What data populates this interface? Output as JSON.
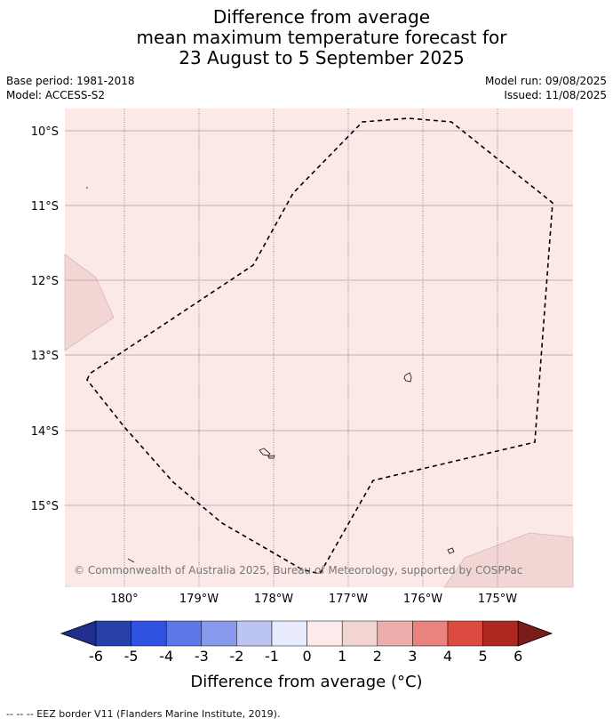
{
  "title": {
    "line1": "Difference from average",
    "line2": "mean maximum temperature forecast for",
    "line3": "23 August to 5 September 2025"
  },
  "meta": {
    "base_period": "Base period: 1981-2018",
    "model": "Model: ACCESS-S2",
    "model_run": "Model run: 09/08/2025",
    "issued": "Issued: 11/08/2025"
  },
  "map": {
    "lat_labels": [
      "10°S",
      "11°S",
      "12°S",
      "13°S",
      "14°S",
      "15°S"
    ],
    "lon_labels": [
      "180°",
      "179°W",
      "178°W",
      "177°W",
      "176°W",
      "175°W"
    ],
    "copyright": "© Commonwealth of Australia 2025, Bureau of Meteorology, supported by COSPPac",
    "colors": {
      "background_anomaly": "#fbe9e8",
      "patch_anomaly": "#f2d6d4"
    }
  },
  "colorbar": {
    "ticks": [
      "-6",
      "-5",
      "-4",
      "-3",
      "-2",
      "-1",
      "0",
      "1",
      "2",
      "3",
      "4",
      "5",
      "6"
    ],
    "label": "Difference from average (°C)",
    "colors": [
      "#1f2f8b",
      "#263fa9",
      "#2f53e0",
      "#5e77e6",
      "#8899eb",
      "#bcc4f3",
      "#e8ebfc",
      "#fcebea",
      "#f2d5d3",
      "#edaeab",
      "#e8837e",
      "#dc4a40",
      "#ad2821",
      "#7a1c1a"
    ]
  },
  "footer": {
    "legend": "--  --  -- EEZ border V11 (Flanders Marine Institute, 2019)."
  }
}
